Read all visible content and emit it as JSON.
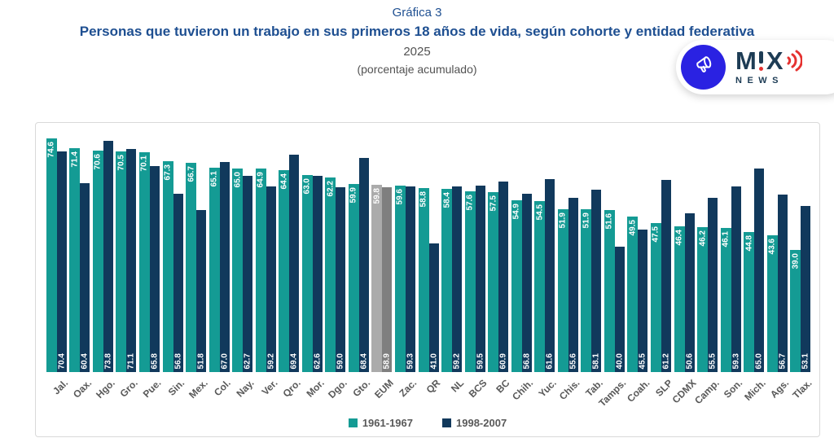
{
  "header": {
    "pretitle": "Gráfica 3",
    "title": "Personas que tuvieron un trabajo en sus primeros 18 años de vida, según cohorte y entidad federativa",
    "year": "2025",
    "subtitle": "(porcentaje acumulado)"
  },
  "logo": {
    "brand_m": "M",
    "brand_x": "X",
    "sub": "NEWS",
    "circle_color": "#2a22e2",
    "accent_red": "#e53230",
    "brand_navy": "#1d3c55"
  },
  "chart_data": {
    "type": "bar",
    "title": "Personas que tuvieron un trabajo en sus primeros 18 años de vida, según cohorte y entidad federativa, 2025 (porcentaje acumulado)",
    "categories": [
      "Jal.",
      "Oax.",
      "Hgo.",
      "Gro.",
      "Pue.",
      "Sin.",
      "Mex.",
      "Col.",
      "Nay.",
      "Ver.",
      "Qro.",
      "Mor.",
      "Dgo.",
      "Gto.",
      "EUM",
      "Zac.",
      "QR",
      "NL",
      "BCS",
      "BC",
      "Chih.",
      "Yuc.",
      "Chis.",
      "Tab.",
      "Tamps.",
      "Coah.",
      "SLP",
      "CDMX",
      "Camp.",
      "Son.",
      "Mich.",
      "Ags.",
      "Tlax."
    ],
    "series": [
      {
        "name": "1961-1967",
        "color": "#149b94",
        "values": [
          74.6,
          71.4,
          70.6,
          70.5,
          70.1,
          67.3,
          66.7,
          65.1,
          65.0,
          64.9,
          64.4,
          63.0,
          62.2,
          59.9,
          59.8,
          59.6,
          58.8,
          58.4,
          57.6,
          57.5,
          54.9,
          54.5,
          51.9,
          51.9,
          51.6,
          49.5,
          47.5,
          46.4,
          46.2,
          46.1,
          44.8,
          43.6,
          39.0
        ]
      },
      {
        "name": "1998-2007",
        "color": "#11395c",
        "values": [
          70.4,
          60.4,
          73.8,
          71.1,
          65.8,
          56.8,
          51.8,
          67.0,
          62.7,
          59.2,
          69.4,
          62.6,
          59.0,
          68.4,
          58.9,
          59.3,
          41.0,
          59.2,
          59.5,
          60.9,
          56.8,
          61.6,
          55.6,
          58.1,
          40.0,
          45.5,
          61.2,
          50.6,
          55.5,
          59.3,
          65.0,
          56.7,
          53.1
        ]
      }
    ],
    "highlight_category": "EUM",
    "highlight_colors": [
      "#ababab",
      "#7f7f7f"
    ],
    "xlabel": "",
    "ylabel": "",
    "ylim": [
      0,
      79.5
    ],
    "grid": false,
    "value_labels": true,
    "legend_position": "bottom"
  }
}
